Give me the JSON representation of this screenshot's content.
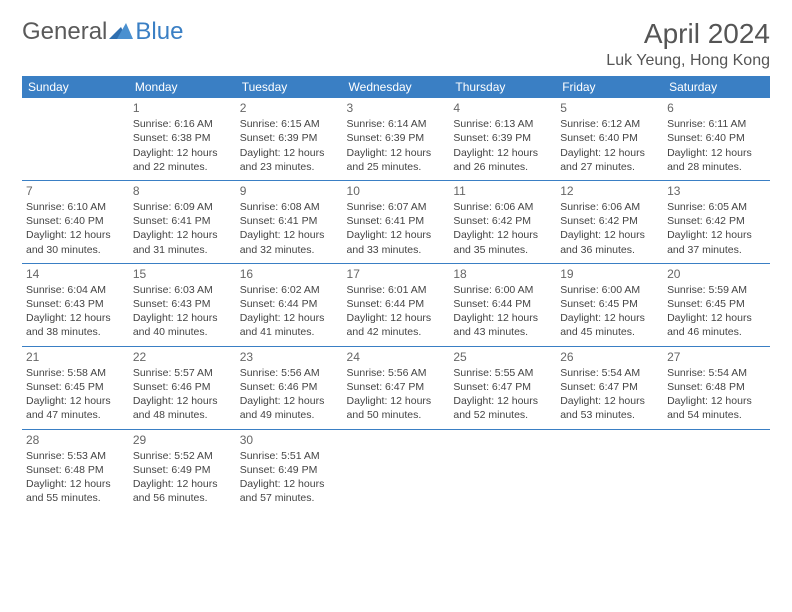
{
  "logo": {
    "part1": "General",
    "part2": "Blue"
  },
  "title": "April 2024",
  "location": "Luk Yeung, Hong Kong",
  "colors": {
    "header_bg": "#3a7fc4",
    "header_text": "#ffffff",
    "row_border": "#3a7fc4",
    "body_text": "#444444",
    "daynum_text": "#666666",
    "title_text": "#555555",
    "background": "#ffffff"
  },
  "typography": {
    "title_fontsize": 28,
    "location_fontsize": 16,
    "weekday_fontsize": 12,
    "cell_fontsize": 10.5,
    "daynum_fontsize": 12,
    "font_family": "Arial"
  },
  "weekdays": [
    "Sunday",
    "Monday",
    "Tuesday",
    "Wednesday",
    "Thursday",
    "Friday",
    "Saturday"
  ],
  "start_offset": 1,
  "days": [
    {
      "n": 1,
      "sunrise": "6:16 AM",
      "sunset": "6:38 PM",
      "daylight": "12 hours and 22 minutes."
    },
    {
      "n": 2,
      "sunrise": "6:15 AM",
      "sunset": "6:39 PM",
      "daylight": "12 hours and 23 minutes."
    },
    {
      "n": 3,
      "sunrise": "6:14 AM",
      "sunset": "6:39 PM",
      "daylight": "12 hours and 25 minutes."
    },
    {
      "n": 4,
      "sunrise": "6:13 AM",
      "sunset": "6:39 PM",
      "daylight": "12 hours and 26 minutes."
    },
    {
      "n": 5,
      "sunrise": "6:12 AM",
      "sunset": "6:40 PM",
      "daylight": "12 hours and 27 minutes."
    },
    {
      "n": 6,
      "sunrise": "6:11 AM",
      "sunset": "6:40 PM",
      "daylight": "12 hours and 28 minutes."
    },
    {
      "n": 7,
      "sunrise": "6:10 AM",
      "sunset": "6:40 PM",
      "daylight": "12 hours and 30 minutes."
    },
    {
      "n": 8,
      "sunrise": "6:09 AM",
      "sunset": "6:41 PM",
      "daylight": "12 hours and 31 minutes."
    },
    {
      "n": 9,
      "sunrise": "6:08 AM",
      "sunset": "6:41 PM",
      "daylight": "12 hours and 32 minutes."
    },
    {
      "n": 10,
      "sunrise": "6:07 AM",
      "sunset": "6:41 PM",
      "daylight": "12 hours and 33 minutes."
    },
    {
      "n": 11,
      "sunrise": "6:06 AM",
      "sunset": "6:42 PM",
      "daylight": "12 hours and 35 minutes."
    },
    {
      "n": 12,
      "sunrise": "6:06 AM",
      "sunset": "6:42 PM",
      "daylight": "12 hours and 36 minutes."
    },
    {
      "n": 13,
      "sunrise": "6:05 AM",
      "sunset": "6:42 PM",
      "daylight": "12 hours and 37 minutes."
    },
    {
      "n": 14,
      "sunrise": "6:04 AM",
      "sunset": "6:43 PM",
      "daylight": "12 hours and 38 minutes."
    },
    {
      "n": 15,
      "sunrise": "6:03 AM",
      "sunset": "6:43 PM",
      "daylight": "12 hours and 40 minutes."
    },
    {
      "n": 16,
      "sunrise": "6:02 AM",
      "sunset": "6:44 PM",
      "daylight": "12 hours and 41 minutes."
    },
    {
      "n": 17,
      "sunrise": "6:01 AM",
      "sunset": "6:44 PM",
      "daylight": "12 hours and 42 minutes."
    },
    {
      "n": 18,
      "sunrise": "6:00 AM",
      "sunset": "6:44 PM",
      "daylight": "12 hours and 43 minutes."
    },
    {
      "n": 19,
      "sunrise": "6:00 AM",
      "sunset": "6:45 PM",
      "daylight": "12 hours and 45 minutes."
    },
    {
      "n": 20,
      "sunrise": "5:59 AM",
      "sunset": "6:45 PM",
      "daylight": "12 hours and 46 minutes."
    },
    {
      "n": 21,
      "sunrise": "5:58 AM",
      "sunset": "6:45 PM",
      "daylight": "12 hours and 47 minutes."
    },
    {
      "n": 22,
      "sunrise": "5:57 AM",
      "sunset": "6:46 PM",
      "daylight": "12 hours and 48 minutes."
    },
    {
      "n": 23,
      "sunrise": "5:56 AM",
      "sunset": "6:46 PM",
      "daylight": "12 hours and 49 minutes."
    },
    {
      "n": 24,
      "sunrise": "5:56 AM",
      "sunset": "6:47 PM",
      "daylight": "12 hours and 50 minutes."
    },
    {
      "n": 25,
      "sunrise": "5:55 AM",
      "sunset": "6:47 PM",
      "daylight": "12 hours and 52 minutes."
    },
    {
      "n": 26,
      "sunrise": "5:54 AM",
      "sunset": "6:47 PM",
      "daylight": "12 hours and 53 minutes."
    },
    {
      "n": 27,
      "sunrise": "5:54 AM",
      "sunset": "6:48 PM",
      "daylight": "12 hours and 54 minutes."
    },
    {
      "n": 28,
      "sunrise": "5:53 AM",
      "sunset": "6:48 PM",
      "daylight": "12 hours and 55 minutes."
    },
    {
      "n": 29,
      "sunrise": "5:52 AM",
      "sunset": "6:49 PM",
      "daylight": "12 hours and 56 minutes."
    },
    {
      "n": 30,
      "sunrise": "5:51 AM",
      "sunset": "6:49 PM",
      "daylight": "12 hours and 57 minutes."
    }
  ],
  "labels": {
    "sunrise": "Sunrise:",
    "sunset": "Sunset:",
    "daylight": "Daylight:"
  }
}
